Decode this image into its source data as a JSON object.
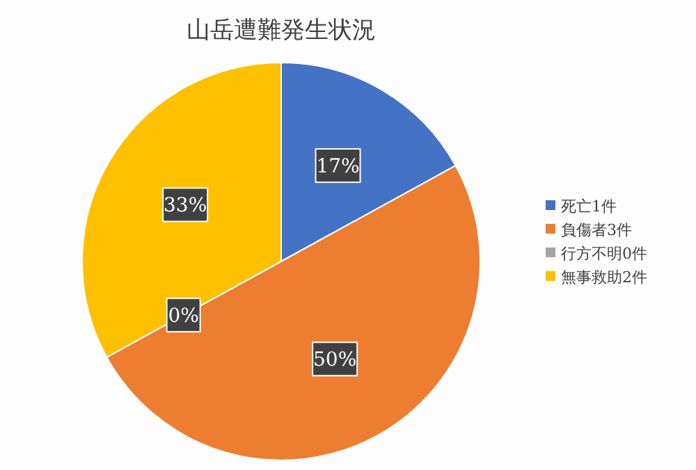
{
  "chart_data": {
    "type": "pie",
    "title": "山岳遭難発生状況",
    "categories": [
      "死亡1件",
      "負傷者3件",
      "行方不明0件",
      "無事救助2件"
    ],
    "values": [
      17,
      50,
      0,
      33
    ],
    "colors": [
      "#4472c4",
      "#ed7d31",
      "#a5a5a5",
      "#ffc000"
    ],
    "value_labels": [
      "17%",
      "50%",
      "0%",
      "33%"
    ],
    "legend": "right"
  }
}
